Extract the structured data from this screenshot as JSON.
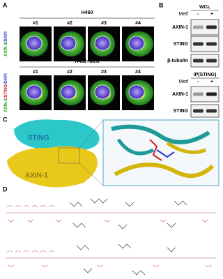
{
  "panel_a": {
    "label": "A",
    "rows": [
      {
        "title": "H460",
        "cells": [
          "#1",
          "#2",
          "#3",
          "#4"
        ],
        "stain": [
          "AXIN-1",
          "/DAPI"
        ]
      },
      {
        "title": "H460+Metf",
        "cells": [
          "#1",
          "#2",
          "#3",
          "#4"
        ],
        "stain": [
          "AXIN-1",
          "/STING",
          "/DAPI"
        ]
      }
    ]
  },
  "panel_b": {
    "label": "B",
    "blots": [
      {
        "title": "WCL",
        "treatment": "Metf",
        "conditions": [
          "-",
          "+"
        ],
        "rows": [
          "AXIN-1",
          "STING",
          "β-tubulin"
        ]
      },
      {
        "title": "IP(STING)",
        "treatment": "Metf",
        "conditions": [
          "-",
          "+"
        ],
        "rows": [
          "AXIN-1",
          "STING"
        ]
      }
    ]
  },
  "panel_c": {
    "label": "C",
    "proteins": [
      "STING",
      "AXIN-1"
    ]
  },
  "panel_d": {
    "label": "D"
  }
}
